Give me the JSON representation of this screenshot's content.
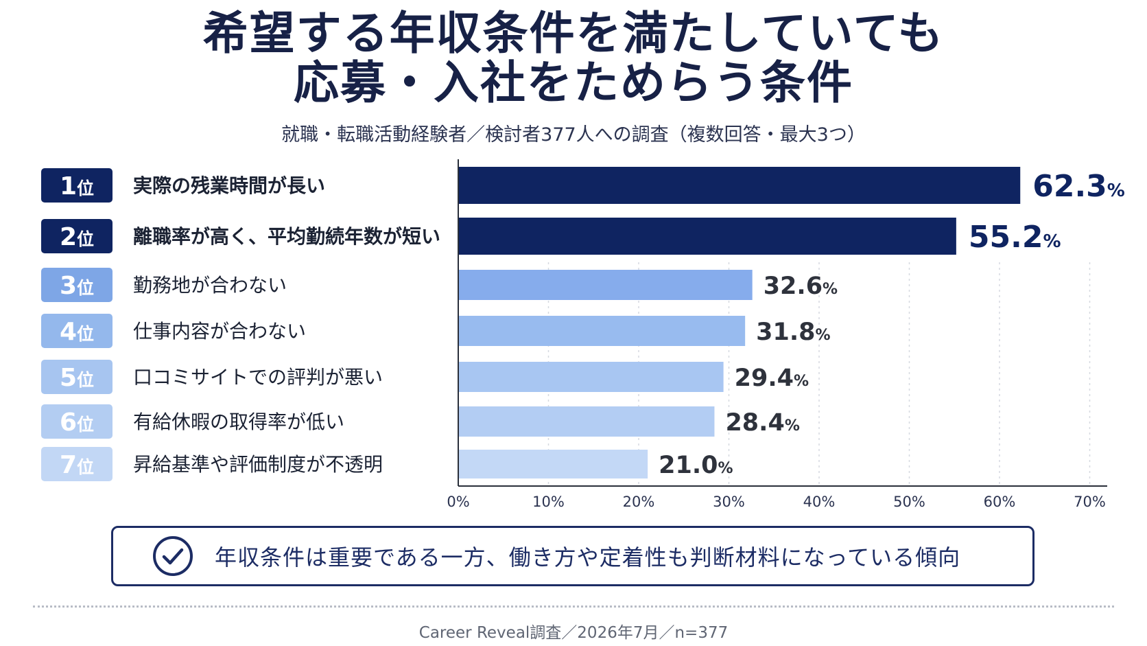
{
  "header": {
    "title_line1": "希望する年収条件を満たしていても",
    "title_line2": "応募・入社をためらう条件",
    "subtitle": "就職・転職活動経験者／検討者377人への調査（複数回答・最大3つ）"
  },
  "chart_data": {
    "type": "bar",
    "orientation": "horizontal",
    "categories": [
      "実際の残業時間が長い",
      "離職率が高く、平均勤続年数が短い",
      "勤務地が合わない",
      "仕事内容が合わない",
      "口コミサイトでの評判が悪い",
      "有給休暇の取得率が低い",
      "昇給基準や評価制度が不透明"
    ],
    "ranks": [
      "1位",
      "2位",
      "3位",
      "4位",
      "5位",
      "6位",
      "7位"
    ],
    "values": [
      62.3,
      55.2,
      32.6,
      31.8,
      29.4,
      28.4,
      21.0
    ],
    "value_labels": [
      "62.3",
      "55.2",
      "32.6",
      "31.8",
      "29.4",
      "28.4",
      "21.0"
    ],
    "value_unit": "%",
    "xlim": [
      0,
      70
    ],
    "x_ticks": [
      "0%",
      "10%",
      "20%",
      "30%",
      "40%",
      "50%",
      "60%",
      "70%"
    ],
    "grid": "vertical dashed",
    "colors": {
      "top": "#0f2461",
      "bars": [
        "#0f2461",
        "#0f2461",
        "#86acec",
        "#98bbef",
        "#a8c6f2",
        "#b3cdf3",
        "#c3d8f6"
      ],
      "rank_badges": [
        "#0f2461",
        "#0f2461",
        "#7ea6e6",
        "#94b8ec",
        "#a7c5f0",
        "#b3cdf2",
        "#c2d7f5"
      ]
    }
  },
  "conclusion": {
    "icon": "check-circle-icon",
    "text": "年収条件は重要である一方、働き方や定着性も判断材料になっている傾向"
  },
  "footer": {
    "source": "Career Reveal調査／2026年7月／n=377"
  }
}
